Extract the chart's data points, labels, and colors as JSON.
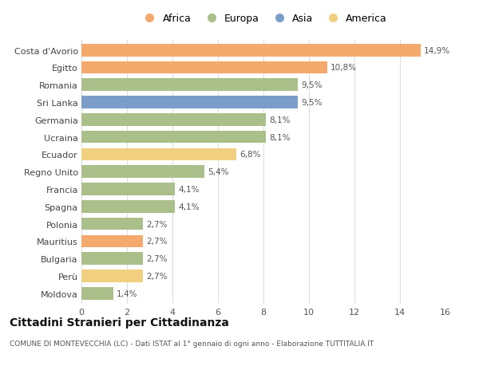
{
  "categories": [
    "Costa d'Avorio",
    "Egitto",
    "Romania",
    "Sri Lanka",
    "Germania",
    "Ucraina",
    "Ecuador",
    "Regno Unito",
    "Francia",
    "Spagna",
    "Polonia",
    "Mauritius",
    "Bulgaria",
    "Perù",
    "Moldova"
  ],
  "values": [
    14.9,
    10.8,
    9.5,
    9.5,
    8.1,
    8.1,
    6.8,
    5.4,
    4.1,
    4.1,
    2.7,
    2.7,
    2.7,
    2.7,
    1.4
  ],
  "labels": [
    "14,9%",
    "10,8%",
    "9,5%",
    "9,5%",
    "8,1%",
    "8,1%",
    "6,8%",
    "5,4%",
    "4,1%",
    "4,1%",
    "2,7%",
    "2,7%",
    "2,7%",
    "2,7%",
    "1,4%"
  ],
  "continents": [
    "Africa",
    "Africa",
    "Europa",
    "Asia",
    "Europa",
    "Europa",
    "America",
    "Europa",
    "Europa",
    "Europa",
    "Europa",
    "Africa",
    "Europa",
    "America",
    "Europa"
  ],
  "colors": {
    "Africa": "#F4A96D",
    "Europa": "#AABF8A",
    "Asia": "#7B9EC9",
    "America": "#F0D080"
  },
  "legend_order": [
    "Africa",
    "Europa",
    "Asia",
    "America"
  ],
  "title": "Cittadini Stranieri per Cittadinanza",
  "subtitle": "COMUNE DI MONTEVECCHIA (LC) - Dati ISTAT al 1° gennaio di ogni anno - Elaborazione TUTTITALIA.IT",
  "xlim": [
    0,
    16
  ],
  "xticks": [
    0,
    2,
    4,
    6,
    8,
    10,
    12,
    14,
    16
  ],
  "background_color": "#ffffff",
  "grid_color": "#dddddd",
  "bar_height": 0.72
}
